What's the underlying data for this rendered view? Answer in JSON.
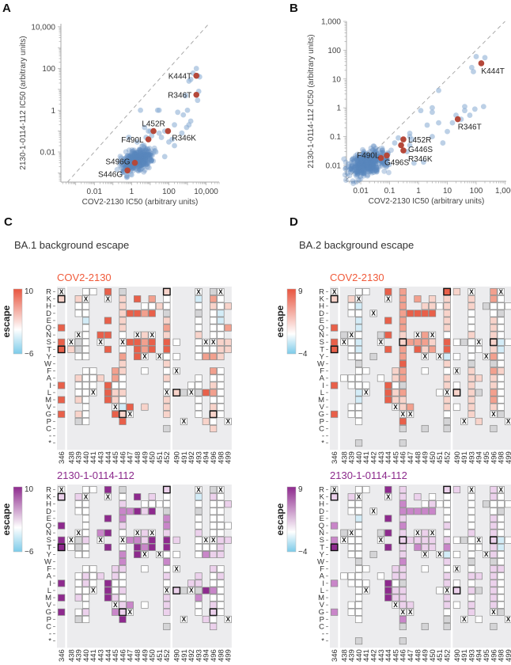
{
  "panels": {
    "a": "A",
    "b": "B",
    "c": "C",
    "d": "D"
  },
  "subtitles": {
    "c": "BA.1 background escape",
    "d": "BA.2 background escape"
  },
  "chart_data": [
    {
      "id": "A",
      "type": "scatter",
      "xlabel": "COV2-2130 IC50 (arbitrary units)",
      "ylabel": "2130-1-0114-112 IC50 (arbitrary units)",
      "xscale": "log",
      "yscale": "log",
      "xlim": [
        0.00016,
        50000
      ],
      "ylim": [
        0.00036,
        14000
      ],
      "xticks": [
        {
          "v": 0.01,
          "label": "0.01"
        },
        {
          "v": 1,
          "label": "1"
        },
        {
          "v": 100,
          "label": "100"
        },
        {
          "v": 10000,
          "label": "10,000"
        }
      ],
      "yticks": [
        {
          "v": 0.01,
          "label": "0.01"
        },
        {
          "v": 1,
          "label": "1"
        },
        {
          "v": 100,
          "label": "100"
        },
        {
          "v": 10000,
          "label": "10,000"
        }
      ],
      "diagonal": "y = x (dashed)",
      "point_color": "#8fb0d6",
      "highlight_color": "#b5483a",
      "highlighted": [
        {
          "label": "K444T",
          "x": 3000,
          "y": 45
        },
        {
          "label": "R346T",
          "x": 3000,
          "y": 5.5
        },
        {
          "label": "L452R",
          "x": 15,
          "y": 0.1
        },
        {
          "label": "R346K",
          "x": 90,
          "y": 0.1
        },
        {
          "label": "F490L",
          "x": 8,
          "y": 0.04
        },
        {
          "label": "S496G",
          "x": 1.5,
          "y": 0.003
        },
        {
          "label": "S446G",
          "x": 0.6,
          "y": 0.0013
        }
      ],
      "points": [
        [
          3000,
          100
        ],
        [
          2000,
          60
        ],
        [
          4500,
          40
        ],
        [
          1200,
          25
        ],
        [
          1500,
          30
        ],
        [
          3500,
          45
        ],
        [
          800,
          5
        ],
        [
          4000,
          8
        ],
        [
          3500,
          3
        ],
        [
          1000,
          1
        ],
        [
          600,
          0.6
        ],
        [
          300,
          0.8
        ],
        [
          1200,
          0.2
        ],
        [
          900,
          0.15
        ],
        [
          500,
          0.08
        ],
        [
          200,
          0.2
        ],
        [
          1500,
          0.3
        ],
        [
          30,
          1
        ],
        [
          25,
          1
        ],
        [
          60,
          0.1
        ],
        [
          10,
          0.1
        ],
        [
          3,
          1
        ],
        [
          5,
          0.15
        ],
        [
          40,
          0.05
        ],
        [
          100,
          0.03
        ],
        [
          200,
          0.02
        ],
        [
          4,
          0.02
        ],
        [
          20,
          0.01
        ],
        [
          60,
          0.006
        ],
        [
          0.5,
          0.001
        ],
        [
          1,
          0.0008
        ],
        [
          12,
          0.06
        ],
        [
          30,
          0.08
        ],
        [
          8,
          0.1
        ],
        [
          150,
          0.04
        ],
        [
          6,
          0.05
        ],
        [
          0.7,
          0.05
        ],
        [
          2,
          0.03
        ]
      ],
      "cluster": {
        "center_x": 2,
        "center_y": 0.004,
        "count": 420,
        "spread_log10": 0.35
      }
    },
    {
      "id": "B",
      "type": "scatter",
      "xlabel": "COV2-2130 IC50 (arbitrary units)",
      "ylabel": "2130-1-0114-112 IC50 (arbitrary units)",
      "xscale": "log",
      "yscale": "log",
      "xlim": [
        0.0032,
        1100
      ],
      "ylim": [
        0.0028,
        1000
      ],
      "xticks": [
        {
          "v": 0.01,
          "label": "0.01"
        },
        {
          "v": 0.1,
          "label": "0.1"
        },
        {
          "v": 1,
          "label": "1"
        },
        {
          "v": 10,
          "label": "10"
        },
        {
          "v": 100,
          "label": "100"
        },
        {
          "v": 1000,
          "label": "1,000"
        }
      ],
      "yticks": [
        {
          "v": 0.01,
          "label": "0.01"
        },
        {
          "v": 0.1,
          "label": "0.1"
        },
        {
          "v": 1,
          "label": "1"
        },
        {
          "v": 10,
          "label": "10"
        },
        {
          "v": 100,
          "label": "100"
        },
        {
          "v": 1000,
          "label": "1,000"
        }
      ],
      "diagonal": "y = x (dashed)",
      "point_color": "#8fb0d6",
      "highlight_color": "#b5483a",
      "highlighted": [
        {
          "label": "K444T",
          "x": 150,
          "y": 35
        },
        {
          "label": "R346T",
          "x": 23,
          "y": 0.4
        },
        {
          "label": "L452R",
          "x": 0.3,
          "y": 0.08
        },
        {
          "label": "G446S",
          "x": 0.25,
          "y": 0.05
        },
        {
          "label": "R346K",
          "x": 0.3,
          "y": 0.033
        },
        {
          "label": "F490L",
          "x": 0.05,
          "y": 0.018
        },
        {
          "label": "G496S",
          "x": 0.08,
          "y": 0.022
        }
      ],
      "points": [
        [
          100,
          60
        ],
        [
          200,
          55
        ],
        [
          70,
          25
        ],
        [
          80,
          18
        ],
        [
          5,
          4
        ],
        [
          1.2,
          0.8
        ],
        [
          3,
          1
        ],
        [
          3,
          0.7
        ],
        [
          40,
          1.1
        ],
        [
          180,
          1.1
        ],
        [
          90,
          0.9
        ],
        [
          60,
          0.55
        ],
        [
          20,
          0.55
        ],
        [
          15,
          0.3
        ],
        [
          10,
          0.15
        ],
        [
          5,
          0.3
        ],
        [
          2,
          0.25
        ],
        [
          7,
          0.06
        ],
        [
          3,
          0.1
        ],
        [
          1.5,
          0.013
        ],
        [
          0.7,
          0.012
        ],
        [
          0.5,
          0.1
        ],
        [
          0.2,
          0.09
        ],
        [
          0.15,
          0.06
        ],
        [
          0.5,
          0.05
        ],
        [
          0.5,
          0.13
        ],
        [
          0.4,
          0.03
        ],
        [
          0.6,
          0.08
        ],
        [
          30,
          0.4
        ],
        [
          40,
          0.8
        ]
      ],
      "cluster": {
        "center_x": 0.018,
        "center_y": 0.012,
        "count": 420,
        "spread_log10": 0.28
      }
    },
    {
      "id": "C-top",
      "type": "heatmap",
      "title": "COV2-2130",
      "title_color": "#f05a3a",
      "legend_label": "escape",
      "scale_max": 10,
      "scale_min": -6,
      "scale_max_label": "10",
      "scale_min_label": "−6",
      "color_high": "#e8553f",
      "color_mid": "#ffffff",
      "color_low": "#7ccbe9",
      "rows": [
        "R",
        "K",
        "H",
        "D",
        "E",
        "Q",
        "N",
        "S",
        "T",
        "Y",
        "W",
        "F",
        "A",
        "I",
        "L",
        "M",
        "V",
        "G",
        "P",
        "C",
        "-",
        "*"
      ],
      "sites": [
        "346",
        "438",
        "439",
        "440",
        "441",
        "443",
        "444",
        "445",
        "446",
        "447",
        "448",
        "449",
        "450",
        "451",
        "452",
        "490",
        "491",
        "492",
        "493",
        "494",
        "496",
        "498",
        "499"
      ],
      "group_breaks_after": [
        "346",
        "452"
      ],
      "cell_codes": {
        ".": "not measured",
        "0": "~0",
        "1": "low escape",
        "2": "medium escape",
        "3": "high escape",
        "n": "negative",
        "g": "filtered",
        "x": "wildtype (X)",
        "b": "BA.1 residue, low",
        "B": "BA.1 residue, high"
      },
      "columns": [
        "xb...3.3B....3.3.3....",
        ".......x1.............",
        ".100..xgg0..1001.1g...",
        "0x00n00000.00000000...",
        "0..........000x.......",
        "......3x....1.........",
        "3x..3.3.3....333......",
        "...........22011x3....",
        "g111110x02110010nb3...",
        "...3...3........3x....",
        ".3.3..x333............",
        "..02..122x.0....1.....",
        ".203..x33.............",
        "..1......x............",
        "b00g1213301010x111.g..",
        ".......0.0.x..b.......",
        "..............g...x...",
        ".............0x.......",
        "xn0g001000..00g000....",
        ".......x02....3...1...",
        "g210000x02.201201b01..",
        "x00nn00111.0000000....",
        "..1..2.11.........x..."
      ]
    },
    {
      "id": "C-bottom",
      "type": "heatmap",
      "title": "2130-1-0114-112",
      "title_color": "#8c2a8c",
      "legend_label": "escape",
      "scale_max": 10,
      "scale_min": -6,
      "scale_max_label": "10",
      "scale_min_label": "−6",
      "color_high": "#8e2a8e",
      "color_mid": "#ffffff",
      "color_low": "#7ccbe9",
      "rows": [
        "R",
        "K",
        "H",
        "D",
        "E",
        "Q",
        "N",
        "S",
        "T",
        "Y",
        "W",
        "F",
        "A",
        "I",
        "L",
        "M",
        "V",
        "G",
        "P",
        "C",
        "-",
        "*"
      ],
      "sites": [
        "346",
        "438",
        "439",
        "440",
        "441",
        "443",
        "444",
        "445",
        "446",
        "447",
        "448",
        "449",
        "450",
        "451",
        "452",
        "490",
        "491",
        "492",
        "493",
        "494",
        "496",
        "498",
        "499"
      ],
      "group_breaks_after": [
        "346",
        "452"
      ],
      "columns": [
        "xb...3.3B....3.3.3....",
        ".......x0.............",
        ".100..xgg0..0001.0g...",
        "0x00000100.01100010...",
        "0..........000x.......",
        "......2x....1.........",
        "3x..3.3.3....333......",
        "...........11001x2....",
        "g012210x022100101b3...",
        "...2...2........2x....",
        ".3.3..x233............",
        "..01..112x.0....0.....",
        ".103..x33.............",
        "..0......x............",
        "b00g2213302010x111.g..",
        ".......1.0.x..b.......",
        "..............g...x...",
        ".............1x.......",
        "xn0g001000..11g200....",
        ".......x02....3...1...",
        "g100000x01.100201b01..",
        "x000000111.0100000....",
        "..1..0.1..........x..."
      ]
    },
    {
      "id": "D-top",
      "type": "heatmap",
      "title": "COV2-2130",
      "title_color": "#f05a3a",
      "legend_label": "escape",
      "scale_max": 9,
      "scale_min": -4,
      "scale_max_label": "9",
      "scale_min_label": "−4",
      "color_high": "#e8553f",
      "color_mid": "#ffffff",
      "color_low": "#7ccbe9",
      "rows": [
        "R",
        "K",
        "H",
        "D",
        "E",
        "Q",
        "N",
        "S",
        "T",
        "Y",
        "W",
        "F",
        "A",
        "I",
        "L",
        "M",
        "V",
        "G",
        "P",
        "C",
        "-",
        "*"
      ],
      "sites": [
        "346",
        "438",
        "439",
        "440",
        "441",
        "442",
        "443",
        "444",
        "445",
        "446",
        "447",
        "448",
        "449",
        "450",
        "451",
        "452",
        "490",
        "491",
        "493",
        "494",
        "495",
        "496",
        "498",
        "499"
      ],
      "group_breaks_after": [
        "346",
        "452"
      ],
      "columns": [
        "xb...3.3B....3...3....",
        "......gx....0.........",
        ".100..x000..00..00....",
        "0xn0nn0nn0g000nn000..g",
        "0..........0.0x.......",
        "...x.....g............",
        "......gx....0.........",
        "3x..3.3.3....333......",
        "...........11011x.....",
        "2222221b22322g211x3g.g",
        "...3...2........2x....",
        ".2.3..x23.............",
        "..13..221x.0.......g..",
        ".113..x12.............",
        "..0......x....0.......",
        "B11111033n1011x110gg..",
        "1......0.0.x.0b.0.....",
        ".......g..........x...",
        "x110001000g1111111....",
        ".......x0...1.g...1...",
        "..g......x............",
        "2200111b12g211221x.g..",
        "x00g000nn00100000g....",
        "..0....0..........x..."
      ]
    },
    {
      "id": "D-bottom",
      "type": "heatmap",
      "title": "2130-1-0114-112",
      "title_color": "#8c2a8c",
      "legend_label": "escape",
      "scale_max": 9,
      "scale_min": -4,
      "scale_max_label": "9",
      "scale_min_label": "−4",
      "color_high": "#8e2a8e",
      "color_mid": "#ffffff",
      "color_low": "#7ccbe9",
      "rows": [
        "R",
        "K",
        "H",
        "D",
        "E",
        "Q",
        "N",
        "S",
        "T",
        "Y",
        "W",
        "F",
        "A",
        "I",
        "L",
        "M",
        "V",
        "G",
        "P",
        "C",
        "-",
        "*"
      ],
      "sites": [
        "346",
        "438",
        "439",
        "440",
        "441",
        "442",
        "443",
        "444",
        "445",
        "446",
        "447",
        "448",
        "449",
        "450",
        "451",
        "452",
        "490",
        "491",
        "493",
        "494",
        "495",
        "496",
        "498",
        "499"
      ],
      "group_breaks_after": [
        "346",
        "452"
      ],
      "columns": [
        "xb...2.2B....2...2....",
        "......gx....0.........",
        ".100..x000..00..00....",
        "0x00n00000g00000000..g",
        "0..........0.0x.......",
        "...x.....g............",
        "......gx....0.........",
        "3x..3.3.3....333......",
        "...........11011x.....",
        "1122121b11211g111x2g.g",
        "...2...1........1x....",
        ".1.2..x12.............",
        "..02..111x.0.......g..",
        ".012..x11.............",
        "..0......x....0.......",
        "b00001012n1011x110gg..",
        "1......0.0.x.0b.0.....",
        ".......g..........x...",
        "x000001000g0101011....",
        ".......x0...1.g...0...",
        "..g......x............",
        "1100111b11g111111x.g..",
        "x00g000nn00100000g....",
        "..0....0..........x..."
      ]
    }
  ]
}
